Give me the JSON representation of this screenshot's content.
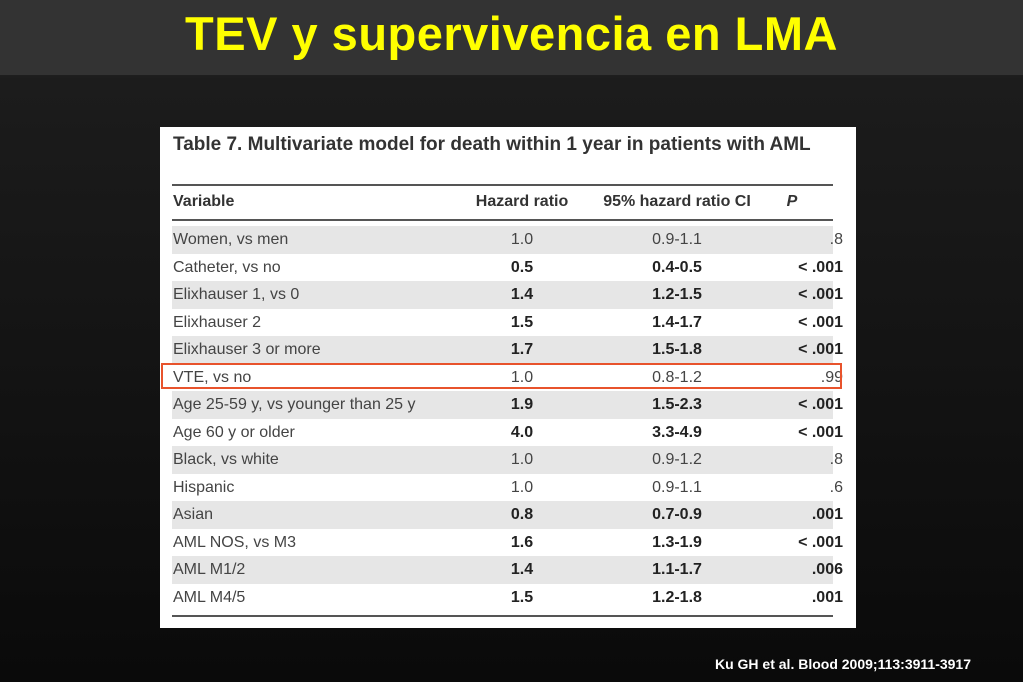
{
  "slide": {
    "title": "TEV y supervivencia en LMA",
    "citation": "Ku GH et al. Blood 2009;113:3911-3917",
    "title_color": "#ffff00",
    "highlight_color": "#e8532c"
  },
  "table": {
    "caption": "Table 7. Multivariate model for death within 1 year in patients with AML",
    "headers": {
      "variable": "Variable",
      "hazard_ratio": "Hazard ratio",
      "ci": "95% hazard ratio CI",
      "p": "P"
    },
    "rows": [
      {
        "variable": "Women, vs men",
        "hr": "1.0",
        "ci": "0.9-1.1",
        "p": ".8",
        "bold": false
      },
      {
        "variable": "Catheter, vs no",
        "hr": "0.5",
        "ci": "0.4-0.5",
        "p": "< .001",
        "bold": true
      },
      {
        "variable": "Elixhauser 1, vs 0",
        "hr": "1.4",
        "ci": "1.2-1.5",
        "p": "< .001",
        "bold": true
      },
      {
        "variable": "Elixhauser 2",
        "hr": "1.5",
        "ci": "1.4-1.7",
        "p": "< .001",
        "bold": true
      },
      {
        "variable": "Elixhauser 3 or more",
        "hr": "1.7",
        "ci": "1.5-1.8",
        "p": "< .001",
        "bold": true
      },
      {
        "variable": "VTE, vs no",
        "hr": "1.0",
        "ci": "0.8-1.2",
        "p": ".99",
        "bold": false,
        "highlighted": true
      },
      {
        "variable": "Age 25-59 y, vs younger than 25 y",
        "hr": "1.9",
        "ci": "1.5-2.3",
        "p": "< .001",
        "bold": true
      },
      {
        "variable": "Age 60 y or older",
        "hr": "4.0",
        "ci": "3.3-4.9",
        "p": "< .001",
        "bold": true
      },
      {
        "variable": "Black, vs white",
        "hr": "1.0",
        "ci": "0.9-1.2",
        "p": ".8",
        "bold": false
      },
      {
        "variable": "Hispanic",
        "hr": "1.0",
        "ci": "0.9-1.1",
        "p": ".6",
        "bold": false
      },
      {
        "variable": "Asian",
        "hr": "0.8",
        "ci": "0.7-0.9",
        "p": ".001",
        "bold": true
      },
      {
        "variable": "AML NOS, vs M3",
        "hr": "1.6",
        "ci": "1.3-1.9",
        "p": "< .001",
        "bold": true
      },
      {
        "variable": "AML M1/2",
        "hr": "1.4",
        "ci": "1.1-1.7",
        "p": ".006",
        "bold": true
      },
      {
        "variable": "AML M4/5",
        "hr": "1.5",
        "ci": "1.2-1.8",
        "p": ".001",
        "bold": true
      }
    ]
  }
}
